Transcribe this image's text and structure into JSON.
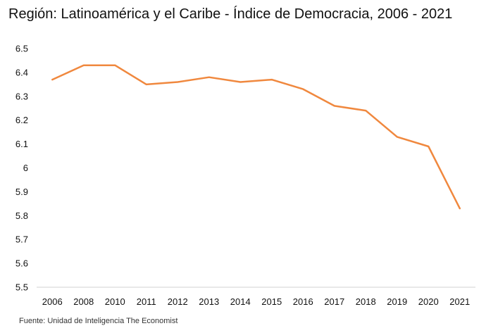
{
  "header": {
    "title": "Región: Latinoamérica y el Caribe - Índice de Democracia, 2006 - 2021"
  },
  "footer": {
    "source": "Fuente: Unidad de Inteligencia The Economist"
  },
  "chart_data": {
    "type": "line",
    "title": "Región: Latinoamérica y el Caribe - Índice de Democracia, 2006 - 2021",
    "xlabel": "",
    "ylabel": "",
    "categories": [
      "2006",
      "2008",
      "2010",
      "2011",
      "2012",
      "2013",
      "2014",
      "2015",
      "2016",
      "2017",
      "2018",
      "2019",
      "2020",
      "2021"
    ],
    "series": [
      {
        "values": [
          6.37,
          6.43,
          6.43,
          6.35,
          6.36,
          6.38,
          6.36,
          6.37,
          6.33,
          6.26,
          6.24,
          6.13,
          6.09,
          5.83
        ],
        "color": "#f0883e"
      }
    ],
    "ylim": [
      5.5,
      6.5
    ],
    "yticks": [
      "6.5",
      "6.4",
      "6.3",
      "6.2",
      "6.1",
      "6",
      "5.9",
      "5.8",
      "5.7",
      "5.6",
      "5.5"
    ],
    "grid": false,
    "legend": "none",
    "axis_color": "#d0d0d0"
  }
}
